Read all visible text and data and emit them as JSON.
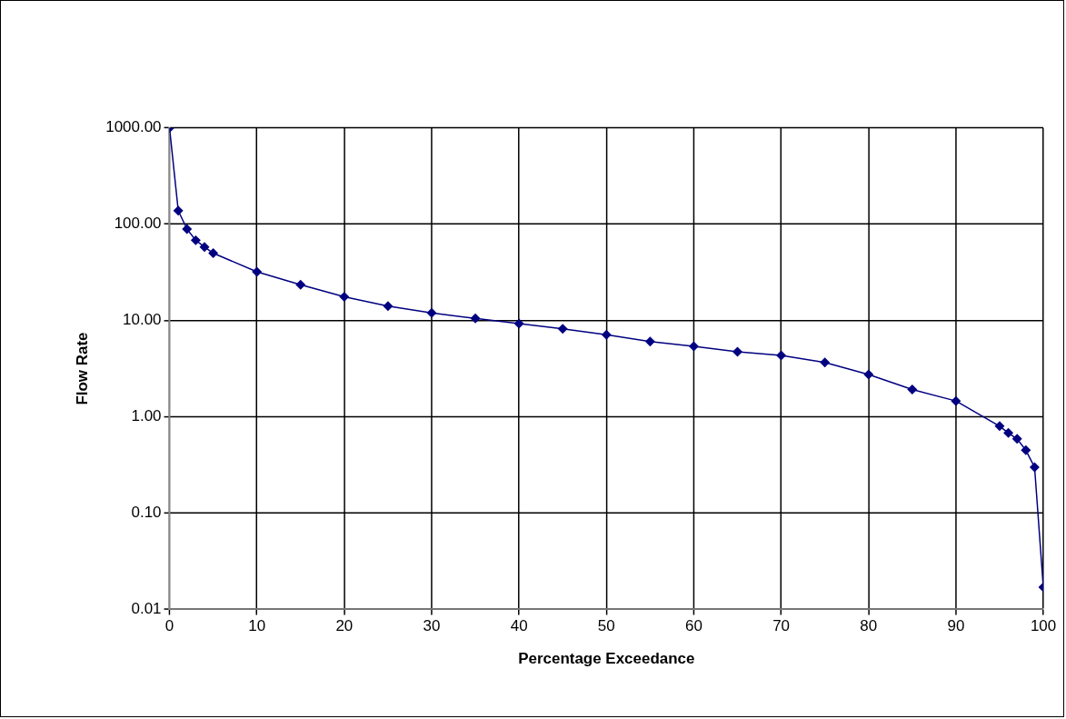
{
  "chart_data": {
    "type": "line",
    "xlabel": "Percentage Exceedance",
    "ylabel": "Flow Rate",
    "x": [
      0,
      1,
      2,
      3,
      4,
      5,
      10,
      15,
      20,
      25,
      30,
      35,
      40,
      45,
      50,
      55,
      60,
      65,
      70,
      75,
      80,
      85,
      90,
      95,
      96,
      97,
      98,
      99,
      100
    ],
    "series": [
      {
        "color": "#000080",
        "values": [
          1000,
          138,
          89,
          68,
          58,
          50,
          32,
          23.5,
          17.6,
          14.1,
          12.0,
          10.5,
          9.3,
          8.2,
          7.1,
          6.05,
          5.4,
          4.73,
          4.34,
          3.67,
          2.75,
          1.92,
          1.46,
          0.8,
          0.68,
          0.59,
          0.45,
          0.3,
          0.017
        ]
      }
    ],
    "xlim": [
      0,
      100
    ],
    "xticks": [
      0,
      10,
      20,
      30,
      40,
      50,
      60,
      70,
      80,
      90,
      100
    ],
    "ylim": [
      0.01,
      1000
    ],
    "yticks": [
      {
        "value": 0.01,
        "label": "0.01"
      },
      {
        "value": 0.1,
        "label": "0.10"
      },
      {
        "value": 1,
        "label": "1.00"
      },
      {
        "value": 10,
        "label": "10.00"
      },
      {
        "value": 100,
        "label": "100.00"
      },
      {
        "value": 1000,
        "label": "1000.00"
      }
    ],
    "log": "y",
    "grid": true,
    "legend": false,
    "marker": "diamond",
    "line_style": "solid"
  }
}
